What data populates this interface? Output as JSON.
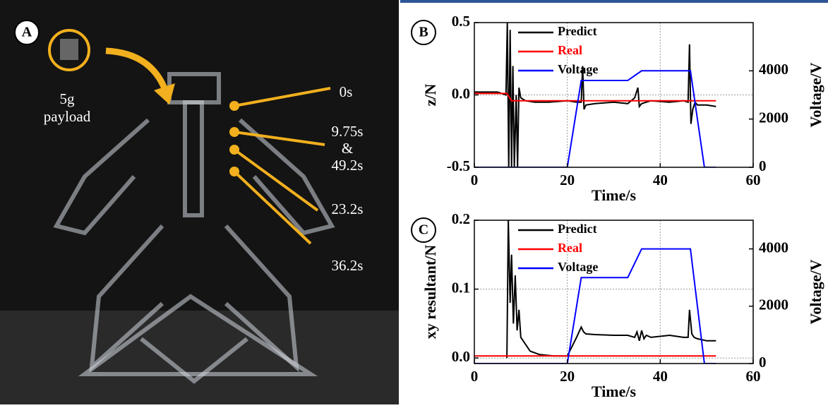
{
  "photo_panel": {
    "label": "A",
    "payload": [
      "5g",
      "payload"
    ],
    "times": [
      "0s",
      "9.75s",
      "&",
      "49.2s",
      "23.2s",
      "36.2s"
    ]
  },
  "chart_data": [
    {
      "type": "line",
      "panel": "B",
      "xlabel": "Time/s",
      "ylabel": "z/N",
      "y2label": "Voltage/V",
      "xlim": [
        0,
        60
      ],
      "xticks": [
        0,
        20,
        40,
        60
      ],
      "ylim": [
        -0.5,
        0.5
      ],
      "yticks": [
        -0.5,
        {
          "value": 0,
          "label": "0.0"
        },
        0.5
      ],
      "y2lim": [
        0,
        6000
      ],
      "y2ticks": [
        0,
        2000,
        4000
      ],
      "grid": true,
      "legend": "top",
      "series": [
        {
          "name": "Predict",
          "color": "#000000",
          "text_color": "#000000",
          "x": [
            0,
            5,
            6.8,
            7.1,
            7.4,
            7.7,
            8,
            8.3,
            8.6,
            9,
            9.3,
            9.6,
            10,
            11,
            13,
            16,
            20,
            22,
            23,
            23.3,
            23.6,
            24,
            26,
            30,
            33,
            34.5,
            35.2,
            35.5,
            36,
            38,
            42,
            45,
            46,
            46.3,
            46.6,
            47,
            47.5,
            48,
            50,
            52
          ],
          "values": [
            0.02,
            0.02,
            0.0,
            0.5,
            -0.5,
            0.45,
            -0.5,
            0.2,
            -0.5,
            0.0,
            -0.5,
            0.05,
            -0.02,
            -0.04,
            -0.05,
            -0.05,
            -0.04,
            -0.05,
            -0.05,
            0.2,
            -0.1,
            -0.07,
            -0.06,
            -0.05,
            -0.06,
            -0.02,
            0.05,
            -0.08,
            -0.06,
            -0.04,
            -0.05,
            -0.04,
            -0.05,
            0.35,
            -0.2,
            -0.1,
            -0.05,
            -0.07,
            -0.07,
            -0.08
          ]
        },
        {
          "name": "Real",
          "color": "#ff0000",
          "text_color": "#ff0000",
          "x": [
            0,
            7,
            8,
            52
          ],
          "values": [
            0.01,
            0.01,
            -0.04,
            -0.04
          ]
        },
        {
          "name": "Voltage",
          "color": "#0000ff",
          "text_color": "#000000",
          "axis": "y2",
          "x": [
            0,
            20,
            23,
            33,
            36,
            46.5,
            49.5,
            52
          ],
          "values": [
            0,
            0,
            3600,
            3600,
            4000,
            4000,
            0,
            0
          ]
        }
      ]
    },
    {
      "type": "line",
      "panel": "C",
      "xlabel": "Time/s",
      "ylabel": "xy resultant/N",
      "y2label": "Voltage/V",
      "xlim": [
        0,
        60
      ],
      "xticks": [
        0,
        20,
        40,
        60
      ],
      "ylim": [
        -0.008,
        0.2
      ],
      "yticks": [
        {
          "value": 0,
          "label": "0.0"
        },
        0.1,
        0.2
      ],
      "y2lim": [
        0,
        5000
      ],
      "y2ticks": [
        0,
        2000,
        4000
      ],
      "grid": true,
      "legend": "top",
      "series": [
        {
          "name": "Predict",
          "color": "#000000",
          "text_color": "#000000",
          "x": [
            7,
            7.3,
            7.7,
            8,
            8.4,
            8.8,
            9.2,
            9.6,
            10,
            11,
            12,
            14,
            17,
            20,
            22,
            23,
            23.5,
            24,
            26,
            30,
            33,
            34.5,
            35,
            35.5,
            36,
            36.5,
            37,
            38,
            42,
            45,
            46,
            46.3,
            46.8,
            47.3,
            48,
            50,
            52
          ],
          "values": [
            0,
            0.2,
            0.08,
            0.15,
            0.05,
            0.12,
            0.04,
            0.07,
            0.03,
            0.02,
            0.01,
            0.005,
            0.003,
            0.003,
            0.03,
            0.045,
            0.038,
            0.035,
            0.034,
            0.033,
            0.033,
            0.03,
            0.038,
            0.025,
            0.04,
            0.028,
            0.033,
            0.03,
            0.033,
            0.03,
            0.03,
            0.07,
            0.035,
            0.03,
            0.028,
            0.025,
            0.025
          ]
        },
        {
          "name": "Real",
          "color": "#ff0000",
          "text_color": "#ff0000",
          "x": [
            0,
            52
          ],
          "values": [
            0.003,
            0.003
          ]
        },
        {
          "name": "Voltage",
          "color": "#0000ff",
          "text_color": "#000000",
          "axis": "y2",
          "x": [
            0,
            20,
            23,
            33,
            36,
            46.5,
            49.5,
            52
          ],
          "values": [
            0,
            0,
            3000,
            3000,
            4000,
            4000,
            0,
            0
          ]
        }
      ]
    }
  ]
}
